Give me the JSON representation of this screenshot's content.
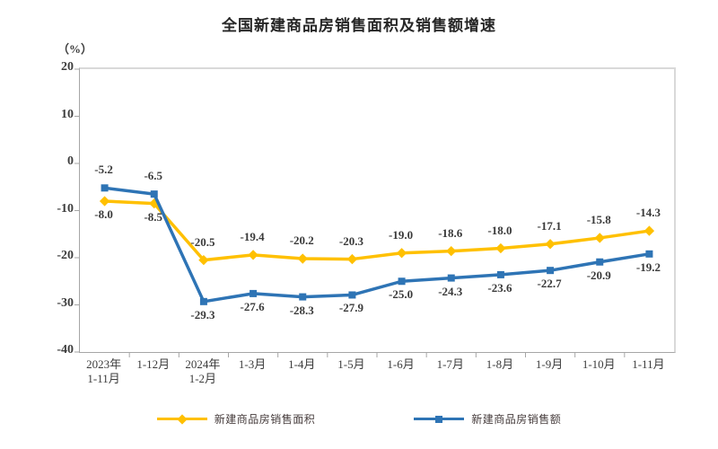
{
  "title": "全国新建商品房销售面积及销售额增速",
  "chart_data": {
    "type": "line",
    "title": "全国新建商品房销售面积及销售额增速",
    "ylabel": "（%）",
    "xlabel": "",
    "ylim": [
      -40,
      20
    ],
    "yticks": [
      20,
      10,
      0,
      -10,
      -20,
      -30,
      -40
    ],
    "grid": false,
    "legend_position": "bottom",
    "categories": [
      "2023年\n1-11月",
      "1-12月",
      "2024年\n1-2月",
      "1-3月",
      "1-4月",
      "1-5月",
      "1-6月",
      "1-7月",
      "1-8月",
      "1-9月",
      "1-10月",
      "1-11月"
    ],
    "series": [
      {
        "name": "新建商品房销售面积",
        "color": "#FFC000",
        "marker": "diamond",
        "values": [
          -8.0,
          -8.5,
          -20.5,
          -19.4,
          -20.2,
          -20.3,
          -19.0,
          -18.6,
          -18.0,
          -17.1,
          -15.8,
          -14.3
        ],
        "labels": [
          "-8.0",
          "-8.5",
          "-20.5",
          "-19.4",
          "-20.2",
          "-20.3",
          "-19.0",
          "-18.6",
          "-18.0",
          "-17.1",
          "-15.8",
          "-14.3"
        ],
        "label_sides": [
          "below",
          "below",
          "above",
          "above",
          "above",
          "above",
          "above",
          "above",
          "above",
          "above",
          "above",
          "above"
        ]
      },
      {
        "name": "新建商品房销售额",
        "color": "#2E74B5",
        "marker": "square",
        "values": [
          -5.2,
          -6.5,
          -29.3,
          -27.6,
          -28.3,
          -27.9,
          -25.0,
          -24.3,
          -23.6,
          -22.7,
          -20.9,
          -19.2
        ],
        "labels": [
          "-5.2",
          "-6.5",
          "-29.3",
          "-27.6",
          "-28.3",
          "-27.9",
          "-25.0",
          "-24.3",
          "-23.6",
          "-22.7",
          "-20.9",
          "-19.2"
        ],
        "label_sides": [
          "above",
          "above",
          "below",
          "below",
          "below",
          "below",
          "below",
          "below",
          "below",
          "below",
          "below",
          "below"
        ]
      }
    ]
  }
}
